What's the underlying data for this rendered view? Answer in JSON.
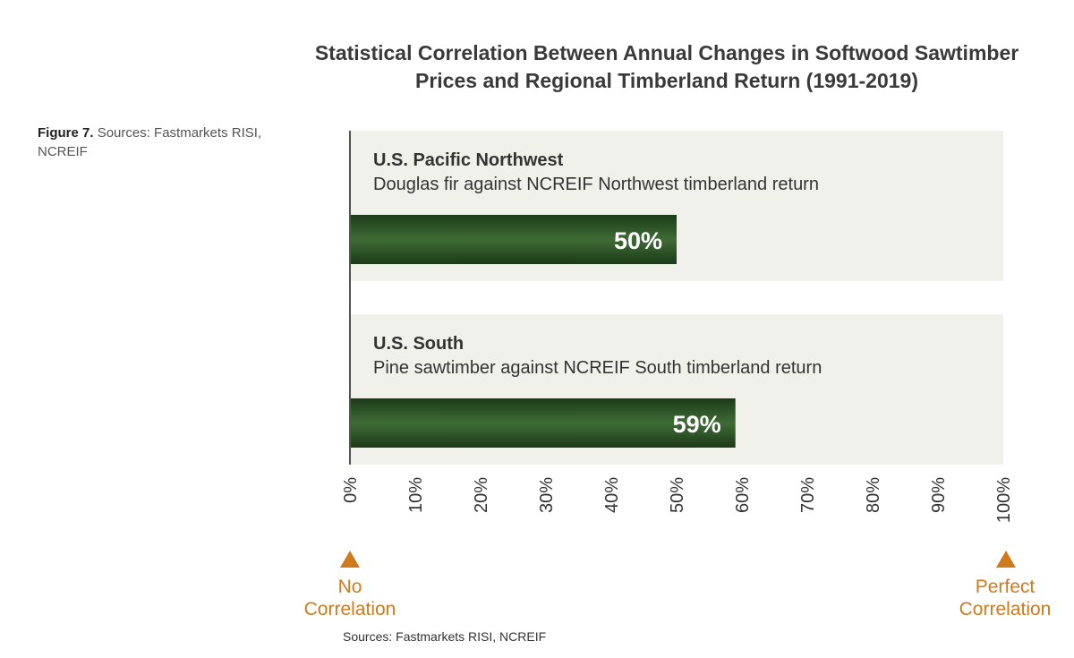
{
  "figure_caption": {
    "label": "Figure 7.",
    "text": "Sources: Fastmarkets RISI, NCREIF"
  },
  "colors": {
    "panel_bg": "#f1f1ec",
    "bar_dark": "#1c3a18",
    "bar_mid": "#3f6b36",
    "accent": "#d07a1e",
    "axis": "#555555"
  },
  "chart_data": {
    "type": "bar",
    "orientation": "horizontal",
    "title": "Statistical Correlation Between Annual Changes in Softwood Sawtimber Prices and Regional Timberland Return (1991-2019)",
    "categories": [
      "U.S. Pacific Northwest",
      "U.S. South"
    ],
    "subtitles": [
      "Douglas fir against NCREIF Northwest timberland return",
      "Pine sawtimber against NCREIF South timberland return"
    ],
    "values": [
      50,
      59
    ],
    "value_labels": [
      "50%",
      "59%"
    ],
    "xlim": [
      0,
      100
    ],
    "xticks": [
      0,
      10,
      20,
      30,
      40,
      50,
      60,
      70,
      80,
      90,
      100
    ],
    "xtick_labels": [
      "0%",
      "10%",
      "20%",
      "30%",
      "40%",
      "50%",
      "60%",
      "70%",
      "80%",
      "90%",
      "100%"
    ],
    "annotations": {
      "left_line1": "No",
      "left_line2": "Correlation",
      "right_line1": "Perfect",
      "right_line2": "Correlation"
    }
  },
  "footnote": "Sources: Fastmarkets RISI, NCREIF"
}
